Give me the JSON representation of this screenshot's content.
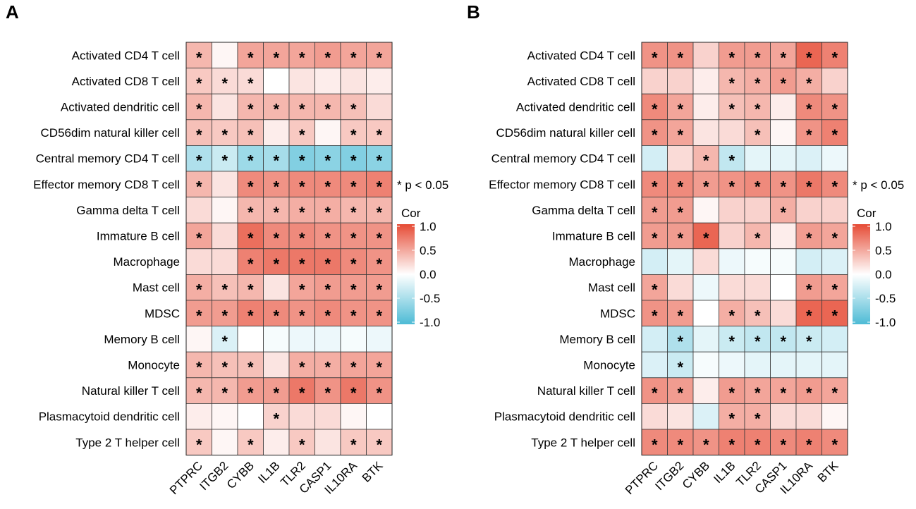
{
  "chart_data": [
    {
      "type": "heatmap",
      "panel": "A",
      "legend_title": "Cor",
      "legend_ticks": [
        "1.0",
        "0.5",
        "0.0",
        "-0.5",
        "-1.0"
      ],
      "significance_note": "* p < 0.05",
      "value_range": [
        -1,
        1
      ],
      "rows": [
        "Activated CD4 T cell",
        "Activated CD8 T cell",
        "Activated dendritic cell",
        "CD56dim natural killer cell",
        "Central memory CD4 T cell",
        "Effector memory CD8 T cell",
        "Gamma delta T cell",
        "Immature  B cell",
        "Macrophage",
        "Mast cell",
        "MDSC",
        "Memory B cell",
        "Monocyte",
        "Natural killer T cell",
        "Plasmacytoid dendritic cell",
        "Type 2 T helper cell"
      ],
      "columns": [
        "PTPRC",
        "ITGB2",
        "CYBB",
        "IL1B",
        "TLR2",
        "CASP1",
        "IL10RA",
        "BTK"
      ],
      "values": [
        [
          0.4,
          0.05,
          0.5,
          0.5,
          0.5,
          0.55,
          0.5,
          0.5
        ],
        [
          0.3,
          0.2,
          0.2,
          0.0,
          0.15,
          0.1,
          0.15,
          0.1
        ],
        [
          0.4,
          0.15,
          0.4,
          0.4,
          0.4,
          0.4,
          0.35,
          0.2
        ],
        [
          0.35,
          0.3,
          0.35,
          0.1,
          0.3,
          0.05,
          0.3,
          0.3
        ],
        [
          -0.45,
          -0.3,
          -0.55,
          -0.5,
          -0.7,
          -0.65,
          -0.7,
          -0.65
        ],
        [
          0.4,
          0.15,
          0.65,
          0.6,
          0.65,
          0.65,
          0.65,
          0.7
        ],
        [
          0.2,
          0.05,
          0.4,
          0.4,
          0.45,
          0.45,
          0.4,
          0.4
        ],
        [
          0.5,
          0.2,
          0.8,
          0.65,
          0.65,
          0.6,
          0.6,
          0.6
        ],
        [
          0.2,
          0.2,
          0.7,
          0.75,
          0.75,
          0.75,
          0.65,
          0.6
        ],
        [
          0.45,
          0.35,
          0.4,
          0.15,
          0.5,
          0.55,
          0.55,
          0.55
        ],
        [
          0.55,
          0.55,
          0.7,
          0.65,
          0.6,
          0.65,
          0.6,
          0.6
        ],
        [
          0.05,
          -0.2,
          0.0,
          -0.05,
          -0.1,
          -0.1,
          -0.05,
          -0.1
        ],
        [
          0.4,
          0.35,
          0.35,
          0.15,
          0.45,
          0.45,
          0.5,
          0.5
        ],
        [
          0.4,
          0.4,
          0.55,
          0.55,
          0.75,
          0.6,
          0.75,
          0.6
        ],
        [
          0.1,
          0.05,
          0.0,
          0.25,
          0.2,
          0.2,
          0.05,
          0.0
        ],
        [
          0.3,
          0.05,
          0.3,
          0.1,
          0.3,
          0.15,
          0.3,
          0.3
        ]
      ],
      "significant": [
        [
          1,
          0,
          1,
          1,
          1,
          1,
          1,
          1
        ],
        [
          1,
          1,
          1,
          0,
          0,
          0,
          0,
          0
        ],
        [
          1,
          0,
          1,
          1,
          1,
          1,
          1,
          0
        ],
        [
          1,
          1,
          1,
          0,
          1,
          0,
          1,
          1
        ],
        [
          1,
          1,
          1,
          1,
          1,
          1,
          1,
          1
        ],
        [
          1,
          0,
          1,
          1,
          1,
          1,
          1,
          1
        ],
        [
          0,
          0,
          1,
          1,
          1,
          1,
          1,
          1
        ],
        [
          1,
          0,
          1,
          1,
          1,
          1,
          1,
          1
        ],
        [
          0,
          0,
          1,
          1,
          1,
          1,
          1,
          1
        ],
        [
          1,
          1,
          1,
          0,
          1,
          1,
          1,
          1
        ],
        [
          1,
          1,
          1,
          1,
          1,
          1,
          1,
          1
        ],
        [
          0,
          1,
          0,
          0,
          0,
          0,
          0,
          0
        ],
        [
          1,
          1,
          1,
          0,
          1,
          1,
          1,
          1
        ],
        [
          1,
          1,
          1,
          1,
          1,
          1,
          1,
          1
        ],
        [
          0,
          0,
          0,
          1,
          0,
          0,
          0,
          0
        ],
        [
          1,
          0,
          1,
          0,
          1,
          0,
          1,
          1
        ]
      ]
    },
    {
      "type": "heatmap",
      "panel": "B",
      "legend_title": "Cor",
      "legend_ticks": [
        "1.0",
        "0.5",
        "0.0",
        "-0.5",
        "-1.0"
      ],
      "significance_note": "* p < 0.05",
      "value_range": [
        -1,
        1
      ],
      "rows": [
        "Activated CD4 T cell",
        "Activated CD8 T cell",
        "Activated dendritic cell",
        "CD56dim natural killer cell",
        "Central memory CD4 T cell",
        "Effector memory CD8 T cell",
        "Gamma delta T cell",
        "Immature  B cell",
        "Macrophage",
        "Mast cell",
        "MDSC",
        "Memory B cell",
        "Monocyte",
        "Natural killer T cell",
        "Plasmacytoid dendritic cell",
        "Type 2 T helper cell"
      ],
      "columns": [
        "PTPRC",
        "ITGB2",
        "CYBB",
        "IL1B",
        "TLR2",
        "CASP1",
        "IL10RA",
        "BTK"
      ],
      "values": [
        [
          0.6,
          0.6,
          0.25,
          0.55,
          0.55,
          0.5,
          0.85,
          0.7
        ],
        [
          0.25,
          0.25,
          0.1,
          0.4,
          0.45,
          0.55,
          0.45,
          0.25
        ],
        [
          0.65,
          0.5,
          0.1,
          0.35,
          0.4,
          0.1,
          0.65,
          0.6
        ],
        [
          0.6,
          0.5,
          0.15,
          0.2,
          0.35,
          0.05,
          0.6,
          0.7
        ],
        [
          -0.25,
          0.2,
          0.4,
          -0.35,
          -0.15,
          -0.15,
          -0.2,
          -0.1
        ],
        [
          0.65,
          0.65,
          0.55,
          0.6,
          0.65,
          0.6,
          0.75,
          0.65
        ],
        [
          0.55,
          0.55,
          0.05,
          0.25,
          0.25,
          0.45,
          0.25,
          0.25
        ],
        [
          0.55,
          0.55,
          0.85,
          0.25,
          0.4,
          0.1,
          0.55,
          0.5
        ],
        [
          -0.25,
          -0.15,
          0.2,
          -0.1,
          -0.05,
          -0.05,
          -0.25,
          -0.2
        ],
        [
          0.5,
          0.2,
          -0.1,
          0.2,
          0.2,
          0.0,
          0.55,
          0.5
        ],
        [
          0.6,
          0.55,
          0.0,
          0.45,
          0.35,
          0.2,
          0.85,
          0.85
        ],
        [
          -0.25,
          -0.45,
          -0.15,
          -0.3,
          -0.35,
          -0.35,
          -0.3,
          -0.25
        ],
        [
          -0.2,
          -0.3,
          -0.05,
          -0.1,
          -0.15,
          -0.15,
          -0.15,
          -0.15
        ],
        [
          0.6,
          0.55,
          0.1,
          0.55,
          0.5,
          0.5,
          0.55,
          0.5
        ],
        [
          0.2,
          0.15,
          -0.2,
          0.45,
          0.45,
          0.2,
          0.2,
          0.05
        ],
        [
          0.65,
          0.65,
          0.6,
          0.7,
          0.7,
          0.65,
          0.7,
          0.65
        ]
      ],
      "significant": [
        [
          1,
          1,
          0,
          1,
          1,
          1,
          1,
          1
        ],
        [
          0,
          0,
          0,
          1,
          1,
          1,
          1,
          0
        ],
        [
          1,
          1,
          0,
          1,
          1,
          0,
          1,
          1
        ],
        [
          1,
          1,
          0,
          0,
          1,
          0,
          1,
          1
        ],
        [
          0,
          0,
          1,
          1,
          0,
          0,
          0,
          0
        ],
        [
          1,
          1,
          1,
          1,
          1,
          1,
          1,
          1
        ],
        [
          1,
          1,
          0,
          0,
          0,
          1,
          0,
          0
        ],
        [
          1,
          1,
          1,
          0,
          1,
          0,
          1,
          1
        ],
        [
          0,
          0,
          0,
          0,
          0,
          0,
          0,
          0
        ],
        [
          1,
          0,
          0,
          0,
          0,
          0,
          1,
          1
        ],
        [
          1,
          1,
          0,
          1,
          1,
          0,
          1,
          1
        ],
        [
          0,
          1,
          0,
          1,
          1,
          1,
          1,
          0
        ],
        [
          0,
          1,
          0,
          0,
          0,
          0,
          0,
          0
        ],
        [
          1,
          1,
          0,
          1,
          1,
          1,
          1,
          1
        ],
        [
          0,
          0,
          0,
          1,
          1,
          0,
          0,
          0
        ],
        [
          1,
          1,
          1,
          1,
          1,
          1,
          1,
          1
        ]
      ]
    }
  ]
}
